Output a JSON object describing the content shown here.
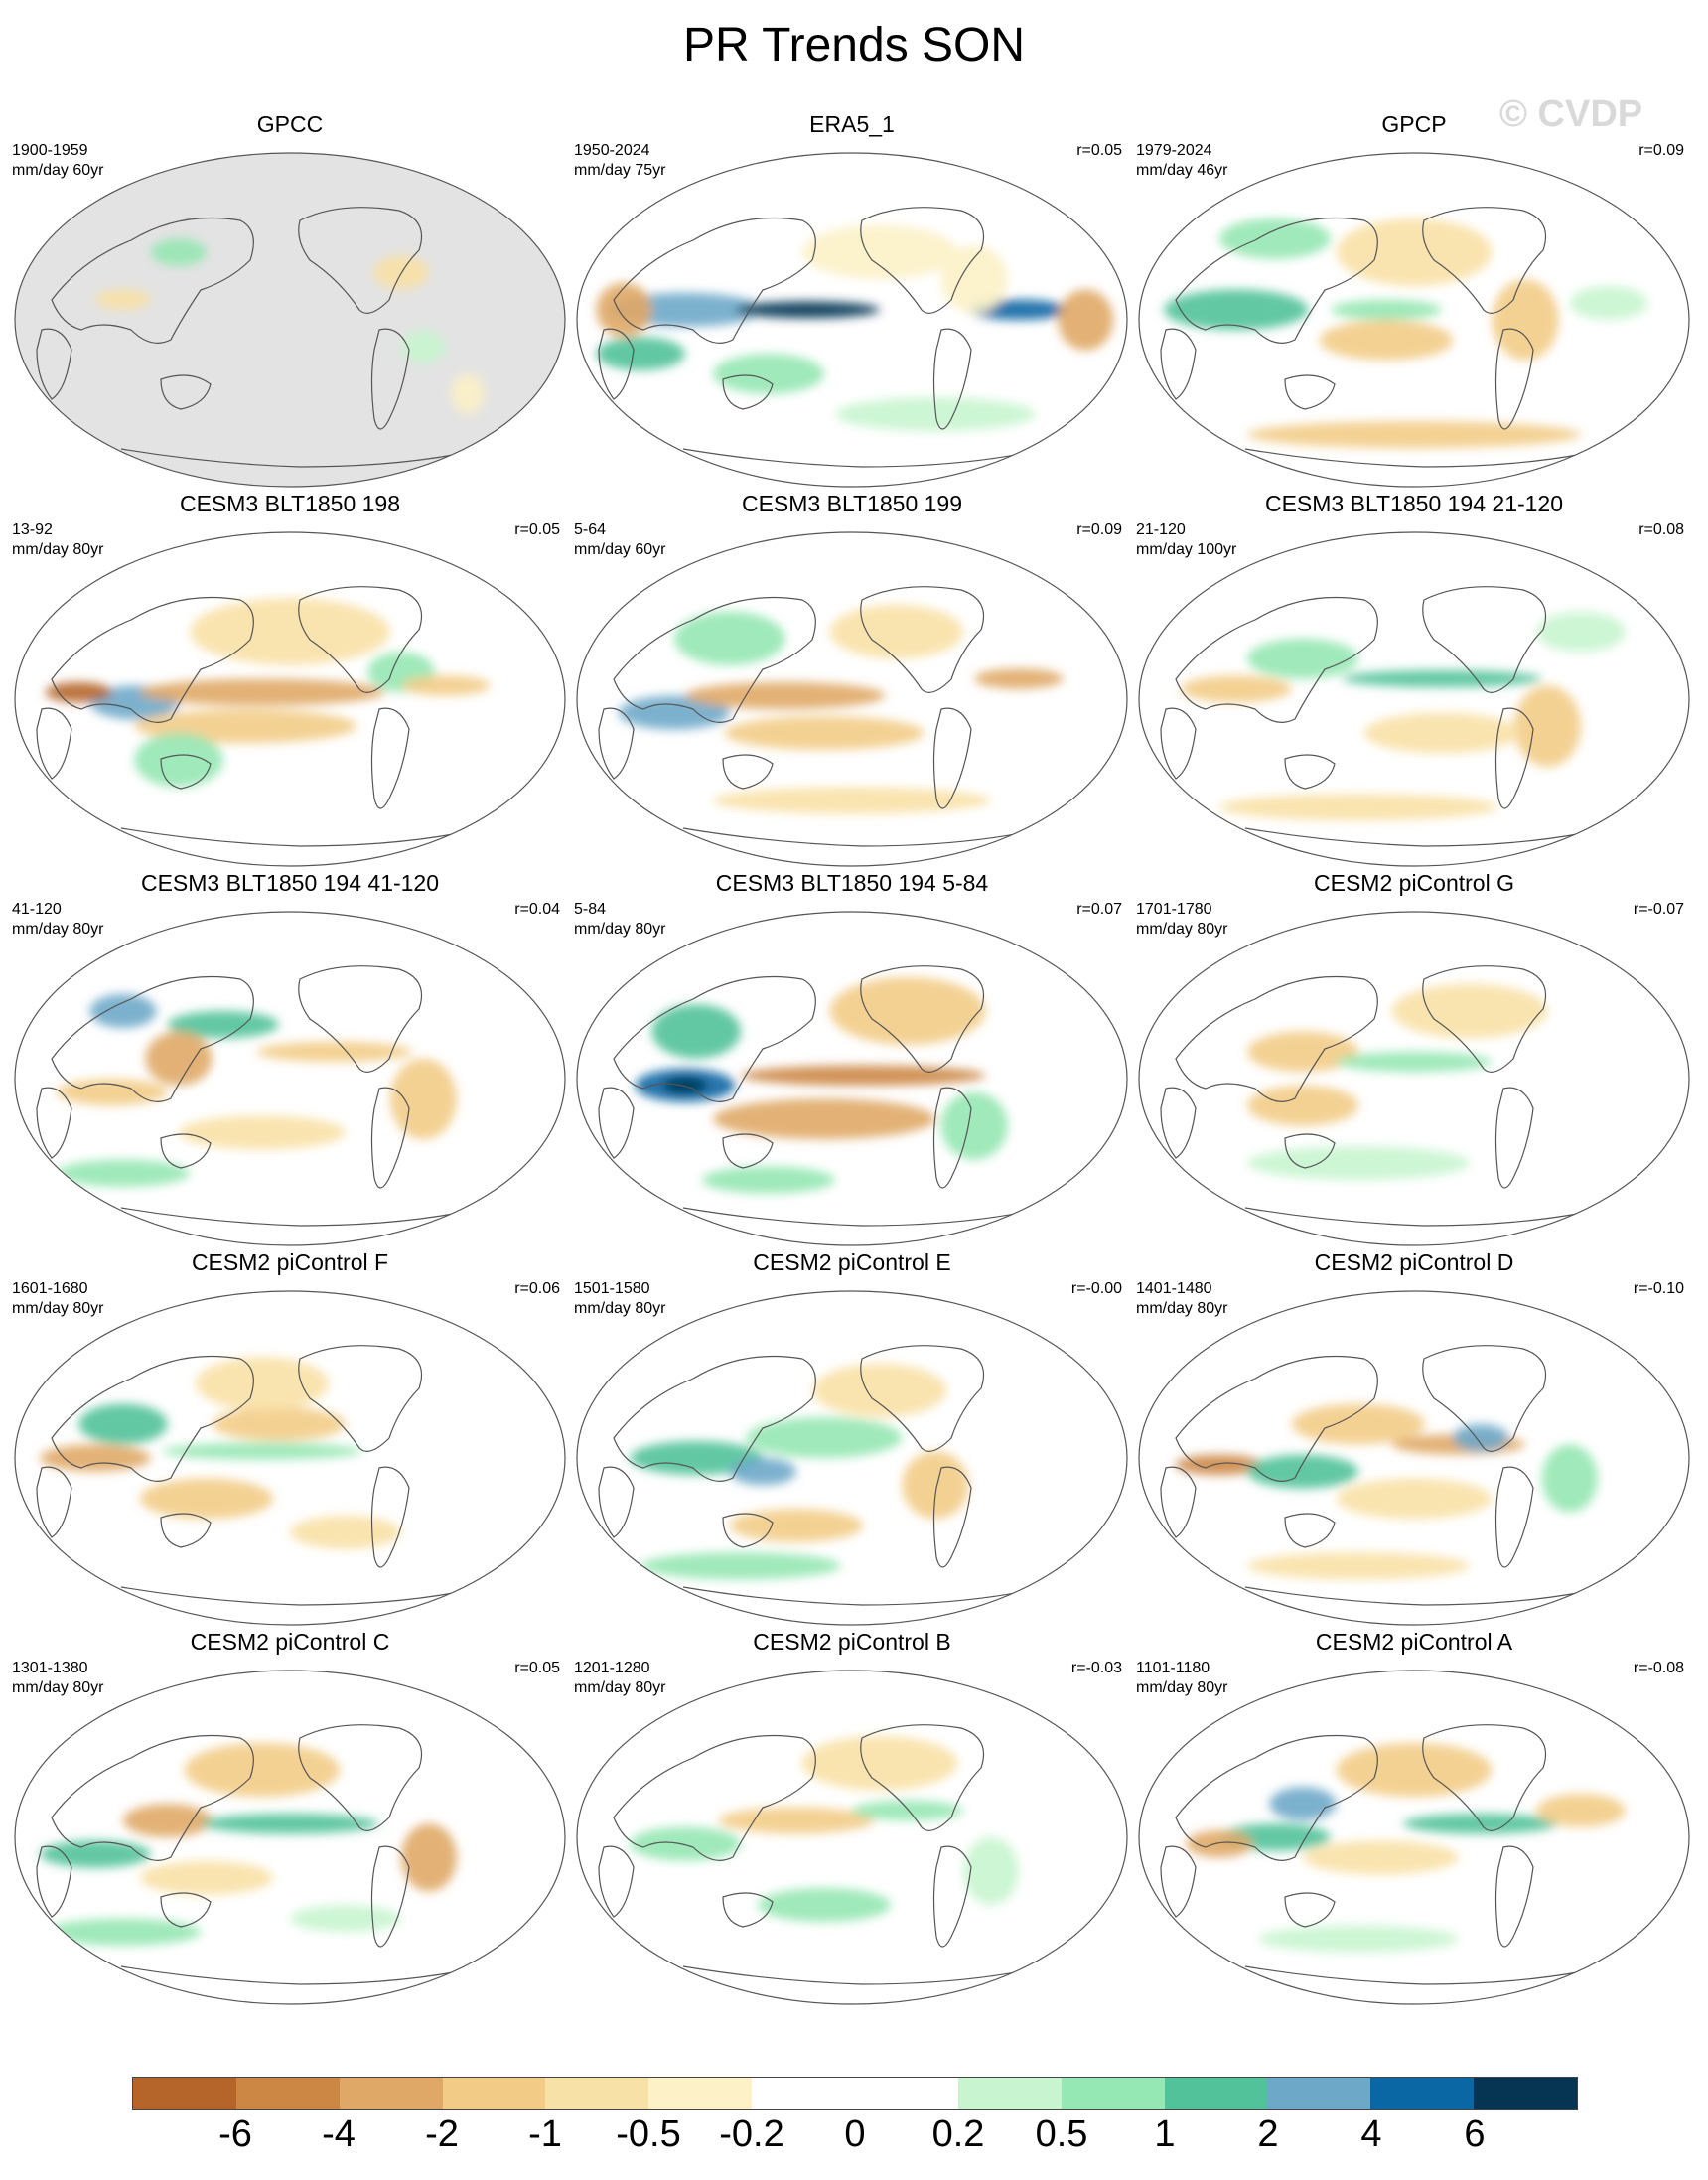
{
  "title": "PR Trends SON",
  "watermark": "© CVDP",
  "colors": {
    "land_mask": "#e3e3e3",
    "coast": "#555555",
    "scale": [
      "#b5652a",
      "#cc8745",
      "#e0a866",
      "#f2cc87",
      "#f8e1a6",
      "#fcf1c7",
      "#ffffff",
      "#ffffff",
      "#c8f5cf",
      "#95e7b3",
      "#52c29a",
      "#6ea8c9",
      "#0b66a4",
      "#053553"
    ]
  },
  "panels": [
    {
      "title": "GPCC",
      "period": "1900-1959",
      "units": "mm/day 60yr",
      "r": "",
      "mask": true,
      "pattern": "gpcc"
    },
    {
      "title": "ERA5_1",
      "period": "1950-2024",
      "units": "mm/day 75yr",
      "r": "r=0.05",
      "mask": false,
      "pattern": "era5"
    },
    {
      "title": "GPCP",
      "period": "1979-2024",
      "units": "mm/day 46yr",
      "r": "r=0.09",
      "mask": false,
      "pattern": "gpcp"
    },
    {
      "title": "CESM3 BLT1850 198",
      "period": "13-92",
      "units": "mm/day 80yr",
      "r": "r=0.05",
      "mask": false,
      "pattern": "wp_wet_ep_dry"
    },
    {
      "title": "CESM3 BLT1850 199",
      "period": "5-64",
      "units": "mm/day 60yr",
      "r": "r=0.09",
      "mask": false,
      "pattern": "wp_wet_ep_dry2"
    },
    {
      "title": "CESM3 BLT1850 194 21-120",
      "period": "21-120",
      "units": "mm/day 100yr",
      "r": "r=0.08",
      "mask": false,
      "pattern": "itcz_wet"
    },
    {
      "title": "CESM3 BLT1850 194 41-120",
      "period": "41-120",
      "units": "mm/day 80yr",
      "r": "r=0.04",
      "mask": false,
      "pattern": "mixed_a"
    },
    {
      "title": "CESM3 BLT1850 194 5-84",
      "period": "5-84",
      "units": "mm/day 80yr",
      "r": "r=0.07",
      "mask": false,
      "pattern": "wp_strong"
    },
    {
      "title": "CESM2 piControl G",
      "period": "1701-1780",
      "units": "mm/day 80yr",
      "r": "r=-0.07",
      "mask": false,
      "pattern": "weak_a"
    },
    {
      "title": "CESM2 piControl F",
      "period": "1601-1680",
      "units": "mm/day 80yr",
      "r": "r=0.06",
      "mask": false,
      "pattern": "mixed_b"
    },
    {
      "title": "CESM2 piControl E",
      "period": "1501-1580",
      "units": "mm/day 80yr",
      "r": "r=-0.00",
      "mask": false,
      "pattern": "mixed_c"
    },
    {
      "title": "CESM2 piControl D",
      "period": "1401-1480",
      "units": "mm/day 80yr",
      "r": "r=-0.10",
      "mask": false,
      "pattern": "mixed_d"
    },
    {
      "title": "CESM2 piControl C",
      "period": "1301-1380",
      "units": "mm/day 80yr",
      "r": "r=0.05",
      "mask": false,
      "pattern": "mixed_e"
    },
    {
      "title": "CESM2 piControl B",
      "period": "1201-1280",
      "units": "mm/day 80yr",
      "r": "r=-0.03",
      "mask": false,
      "pattern": "weak_b"
    },
    {
      "title": "CESM2 piControl A",
      "period": "1101-1180",
      "units": "mm/day 80yr",
      "r": "r=-0.08",
      "mask": false,
      "pattern": "mixed_f"
    }
  ],
  "colorbar": {
    "labels": [
      "-6",
      "-4",
      "-2",
      "-1",
      "-0.5",
      "-0.2",
      "0",
      "0.2",
      "0.5",
      "1",
      "2",
      "4",
      "6"
    ]
  }
}
